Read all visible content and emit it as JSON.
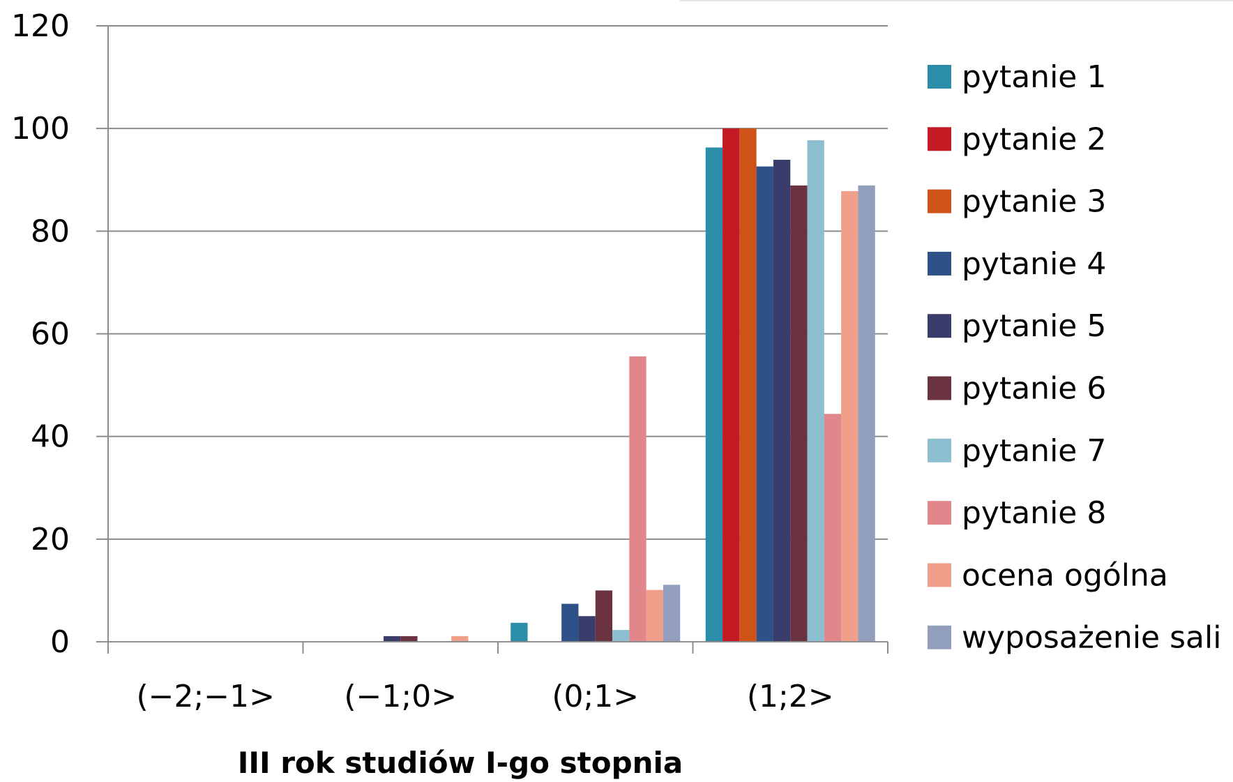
{
  "chart_data": {
    "type": "bar",
    "title": "",
    "xlabel": "III rok studiów I-go stopnia",
    "ylabel": "",
    "ylim": [
      0,
      120
    ],
    "yticks": [
      "0",
      "20",
      "40",
      "60",
      "80",
      "100",
      "120"
    ],
    "categories": [
      "(-2;-1>",
      "(-1;0>",
      "(0;1>",
      "(1;2>"
    ],
    "grid": true,
    "legend_position": "right",
    "series": [
      {
        "name": "pytanie 1",
        "color": "#2b8ea8",
        "values": [
          0,
          0,
          3.7,
          96.3
        ]
      },
      {
        "name": "pytanie 2",
        "color": "#c41a24",
        "values": [
          0,
          0,
          0,
          100
        ]
      },
      {
        "name": "pytanie 3",
        "color": "#cf5316",
        "values": [
          0,
          0,
          0,
          100
        ]
      },
      {
        "name": "pytanie 4",
        "color": "#2e5287",
        "values": [
          0,
          0,
          7.4,
          92.6
        ]
      },
      {
        "name": "pytanie 5",
        "color": "#3a3d6b",
        "values": [
          0,
          1.1,
          5,
          93.9
        ]
      },
      {
        "name": "pytanie 6",
        "color": "#6b3240",
        "values": [
          0,
          1.1,
          10,
          88.9
        ]
      },
      {
        "name": "pytanie 7",
        "color": "#8bbfd0",
        "values": [
          0,
          0,
          2.3,
          97.7
        ]
      },
      {
        "name": "pytanie 8",
        "color": "#e1868a",
        "values": [
          0,
          0,
          55.6,
          44.4
        ]
      },
      {
        "name": "ocena ogólna",
        "color": "#f0a08a",
        "values": [
          0,
          1.1,
          10.1,
          87.8
        ]
      },
      {
        "name": "wyposażenie sali",
        "color": "#919fbd",
        "values": [
          0,
          0,
          11.1,
          88.9
        ]
      }
    ]
  }
}
